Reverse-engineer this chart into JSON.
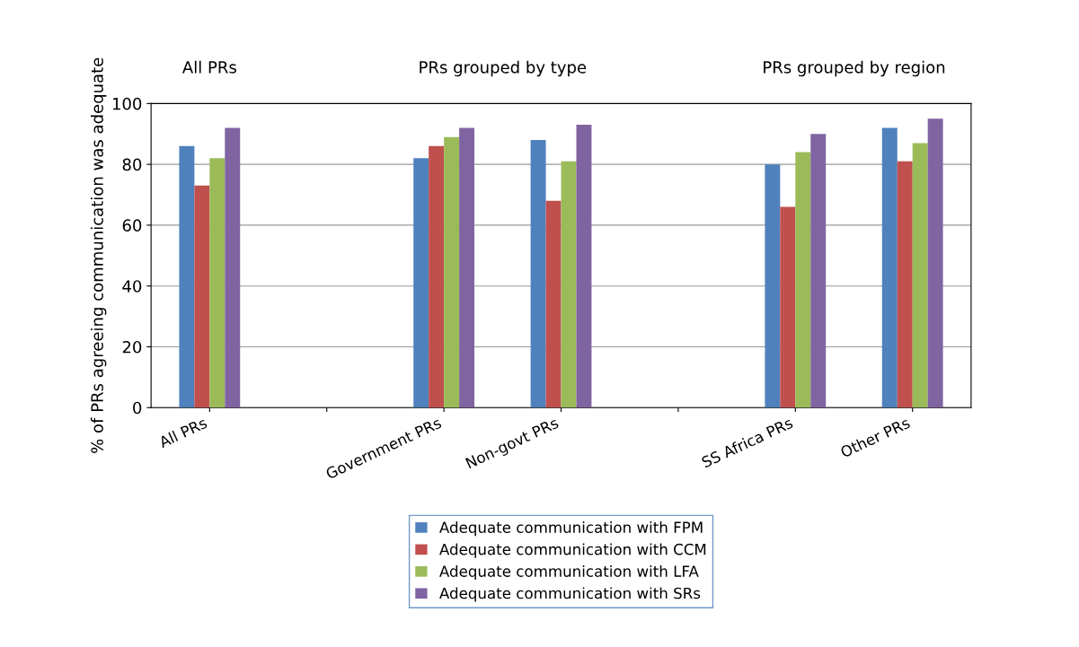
{
  "chart_data": {
    "type": "bar",
    "categories": [
      "All PRs",
      null,
      "Government PRs",
      "Non-govt PRs",
      null,
      "SS Africa PRs",
      "Other PRs"
    ],
    "series": [
      {
        "name": "Adequate communication with FPM",
        "color": "#4f81bd",
        "values": [
          86,
          null,
          82,
          88,
          null,
          80,
          92
        ]
      },
      {
        "name": "Adequate communication with CCM",
        "color": "#c0504d",
        "values": [
          73,
          null,
          86,
          68,
          null,
          66,
          81
        ]
      },
      {
        "name": "Adequate communication with LFA",
        "color": "#9bbb59",
        "values": [
          82,
          null,
          89,
          81,
          null,
          84,
          87
        ]
      },
      {
        "name": "Adequate communication with SRs",
        "color": "#8064a2",
        "values": [
          92,
          null,
          92,
          93,
          null,
          90,
          95
        ]
      }
    ],
    "ylabel": "% of PRs agreeing communication was adequate",
    "ylim": [
      0,
      100
    ],
    "yticks": [
      0,
      20,
      40,
      60,
      80,
      100
    ],
    "annotations": [
      "All PRs",
      "PRs grouped by type",
      "PRs grouped by region"
    ],
    "grid": "y",
    "legend": "bottom"
  }
}
